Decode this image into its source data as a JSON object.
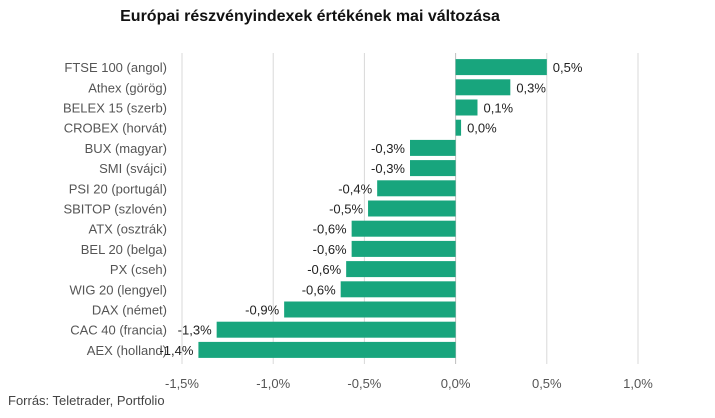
{
  "chart_data": {
    "type": "bar",
    "orientation": "horizontal",
    "title": "Európai részvényindexek értékének mai változása",
    "categories": [
      "FTSE 100 (angol)",
      "Athex (görög)",
      "BELEX 15 (szerb)",
      "CROBEX (horvát)",
      "BUX (magyar)",
      "SMI (svájci)",
      "PSI 20 (portugál)",
      "SBITOP (szlovén)",
      "ATX (osztrák)",
      "BEL 20 (belga)",
      "PX (cseh)",
      "WIG 20 (lengyel)",
      "DAX (német)",
      "CAC 40 (francia)",
      "AEX (holland)"
    ],
    "values": [
      0.5,
      0.3,
      0.12,
      0.03,
      -0.25,
      -0.25,
      -0.43,
      -0.48,
      -0.57,
      -0.57,
      -0.6,
      -0.63,
      -0.94,
      -1.31,
      -1.41
    ],
    "value_labels": [
      "0,5%",
      "0,3%",
      "0,1%",
      "0,0%",
      "-0,3%",
      "-0,3%",
      "-0,4%",
      "-0,5%",
      "-0,6%",
      "-0,6%",
      "-0,6%",
      "-0,6%",
      "-0,9%",
      "-1,3%",
      "-1,4%"
    ],
    "xlim": [
      -1.5,
      1.0
    ],
    "xticks": [
      -1.5,
      -1.0,
      -0.5,
      0.0,
      0.5,
      1.0
    ],
    "xtick_labels": [
      "-1,5%",
      "-1,0%",
      "-0,5%",
      "0,0%",
      "0,5%",
      "1,0%"
    ],
    "xlabel": "",
    "ylabel": "",
    "grid": "vertical",
    "bar_color": "#18a57d",
    "grid_color": "#d9d9d9",
    "zero_line_color": "#bfbfbf"
  },
  "source": "Forrás: Teletrader, Portfolio"
}
